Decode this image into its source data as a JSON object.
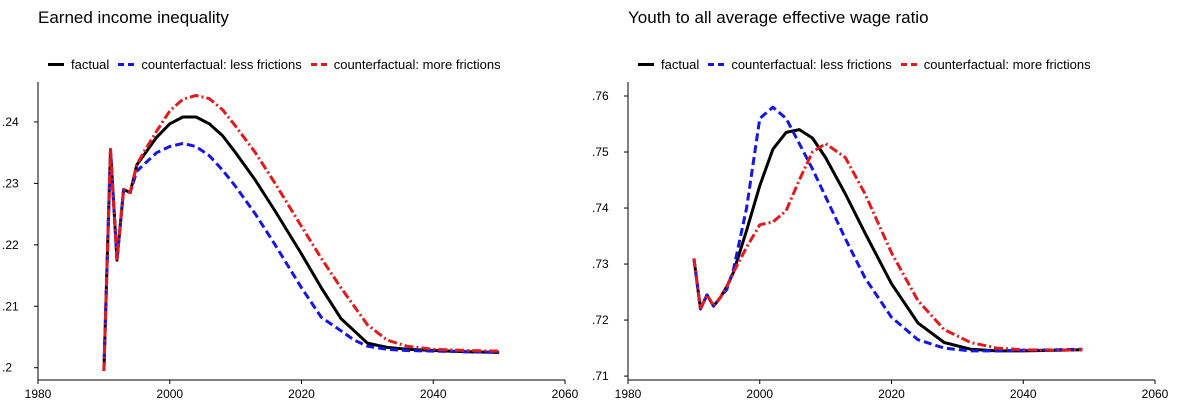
{
  "colors": {
    "factual": "#000000",
    "less": "#1515e6",
    "more": "#e31a1c"
  },
  "chart_data": [
    {
      "type": "line",
      "title": "Earned income inequality",
      "xlabel": "",
      "ylabel": "",
      "xlim": [
        1980,
        2060
      ],
      "ylim": [
        0.198,
        0.2465
      ],
      "xticks": [
        1980,
        2000,
        2020,
        2040,
        2060
      ],
      "xtick_labels": [
        "1980",
        "2000",
        "2020",
        "2040",
        "2060"
      ],
      "yticks": [
        0.2,
        0.21,
        0.22,
        0.23,
        0.24
      ],
      "ytick_labels": [
        ".2",
        ".21",
        ".22",
        ".23",
        ".24"
      ],
      "grid": false,
      "legend_position": "top",
      "series": [
        {
          "name": "factual",
          "style": "solid",
          "color": "#000000",
          "x": [
            1990,
            1991,
            1992,
            1993,
            1994,
            1995,
            1996,
            1998,
            2000,
            2002,
            2004,
            2006,
            2008,
            2010,
            2013,
            2016,
            2020,
            2023,
            2026,
            2028,
            2030,
            2033,
            2036,
            2040,
            2045,
            2050
          ],
          "y": [
            0.1995,
            0.2355,
            0.2175,
            0.229,
            0.2285,
            0.233,
            0.2345,
            0.2375,
            0.2397,
            0.2408,
            0.2408,
            0.2397,
            0.2378,
            0.235,
            0.2305,
            0.2255,
            0.2185,
            0.213,
            0.208,
            0.206,
            0.204,
            0.2033,
            0.203,
            0.2028,
            0.2026,
            0.2025
          ]
        },
        {
          "name": "counterfactual: less frictions",
          "style": "dashed",
          "color": "#1515e6",
          "x": [
            1990,
            1991,
            1992,
            1993,
            1994,
            1995,
            1996,
            1998,
            2000,
            2002,
            2004,
            2006,
            2008,
            2010,
            2013,
            2016,
            2020,
            2023,
            2026,
            2028,
            2030,
            2033,
            2036,
            2040,
            2045,
            2050
          ],
          "y": [
            0.1995,
            0.2355,
            0.2175,
            0.229,
            0.2285,
            0.232,
            0.233,
            0.235,
            0.236,
            0.2365,
            0.236,
            0.2345,
            0.2322,
            0.2295,
            0.225,
            0.22,
            0.213,
            0.2082,
            0.206,
            0.2045,
            0.2035,
            0.203,
            0.2028,
            0.2027,
            0.2026,
            0.2025
          ]
        },
        {
          "name": "counterfactual: more frictions",
          "style": "dash-dot",
          "color": "#e31a1c",
          "x": [
            1990,
            1991,
            1992,
            1993,
            1994,
            1995,
            1996,
            1998,
            2000,
            2002,
            2004,
            2006,
            2008,
            2010,
            2013,
            2016,
            2020,
            2023,
            2026,
            2028,
            2030,
            2033,
            2036,
            2040,
            2045,
            2050
          ],
          "y": [
            0.1995,
            0.2355,
            0.2175,
            0.229,
            0.2285,
            0.233,
            0.235,
            0.2385,
            0.2418,
            0.2437,
            0.2443,
            0.2438,
            0.242,
            0.2393,
            0.235,
            0.23,
            0.223,
            0.2178,
            0.213,
            0.21,
            0.207,
            0.2045,
            0.2035,
            0.203,
            0.2028,
            0.2027
          ]
        }
      ]
    },
    {
      "type": "line",
      "title": "Youth to all average effective wage ratio",
      "xlabel": "",
      "ylabel": "",
      "xlim": [
        1980,
        2060
      ],
      "ylim": [
        0.7093,
        0.7625
      ],
      "xticks": [
        1980,
        2000,
        2020,
        2040,
        2060
      ],
      "xtick_labels": [
        "1980",
        "2000",
        "2020",
        "2040",
        "2060"
      ],
      "yticks": [
        0.71,
        0.72,
        0.73,
        0.74,
        0.75,
        0.76
      ],
      "ytick_labels": [
        ".71",
        ".72",
        ".73",
        ".74",
        ".75",
        ".76"
      ],
      "grid": false,
      "legend_position": "top",
      "series": [
        {
          "name": "factual",
          "style": "solid",
          "color": "#000000",
          "x": [
            1990,
            1991,
            1992,
            1993,
            1994,
            1995,
            1996,
            1998,
            2000,
            2002,
            2004,
            2006,
            2008,
            2010,
            2013,
            2016,
            2020,
            2024,
            2028,
            2032,
            2036,
            2040,
            2045,
            2049
          ],
          "y": [
            0.731,
            0.722,
            0.7245,
            0.7225,
            0.724,
            0.726,
            0.7285,
            0.736,
            0.744,
            0.7505,
            0.7535,
            0.754,
            0.7525,
            0.749,
            0.7425,
            0.7355,
            0.7265,
            0.7195,
            0.716,
            0.7148,
            0.7145,
            0.7145,
            0.7146,
            0.7147
          ]
        },
        {
          "name": "counterfactual: less frictions",
          "style": "dashed",
          "color": "#1515e6",
          "x": [
            1990,
            1991,
            1992,
            1993,
            1994,
            1995,
            1996,
            1998,
            2000,
            2002,
            2004,
            2006,
            2008,
            2010,
            2013,
            2016,
            2020,
            2024,
            2028,
            2032,
            2036,
            2040,
            2045,
            2049
          ],
          "y": [
            0.731,
            0.722,
            0.7245,
            0.7225,
            0.724,
            0.7255,
            0.729,
            0.74,
            0.756,
            0.758,
            0.756,
            0.7515,
            0.747,
            0.742,
            0.7345,
            0.7275,
            0.7205,
            0.7165,
            0.715,
            0.7145,
            0.7145,
            0.7146,
            0.7147,
            0.7148
          ]
        },
        {
          "name": "counterfactual: more frictions",
          "style": "dash-dot",
          "color": "#e31a1c",
          "x": [
            1990,
            1991,
            1992,
            1993,
            1994,
            1995,
            1996,
            1998,
            2000,
            2002,
            2004,
            2006,
            2008,
            2010,
            2013,
            2016,
            2020,
            2024,
            2028,
            2032,
            2036,
            2040,
            2045,
            2049
          ],
          "y": [
            0.731,
            0.722,
            0.7245,
            0.7225,
            0.724,
            0.726,
            0.7285,
            0.733,
            0.737,
            0.7375,
            0.7395,
            0.745,
            0.75,
            0.7515,
            0.749,
            0.7425,
            0.732,
            0.7235,
            0.7183,
            0.716,
            0.715,
            0.7147,
            0.7146,
            0.7147
          ]
        }
      ]
    }
  ]
}
